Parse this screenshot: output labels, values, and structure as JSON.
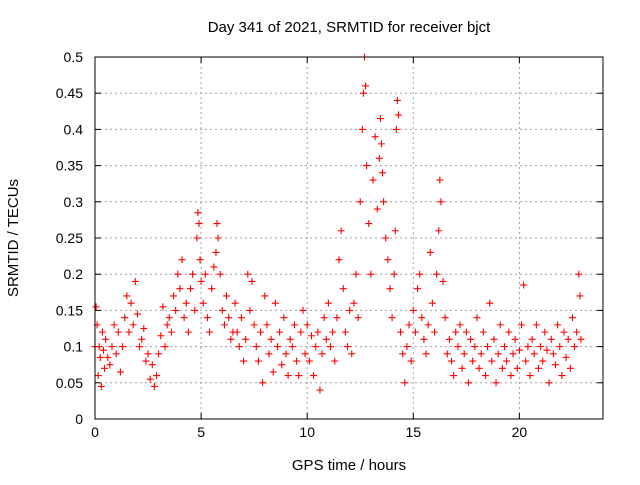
{
  "chart_data": {
    "type": "scatter",
    "title": "Day 341 of 2021, SRMTID for receiver bjct",
    "xlabel": "GPS time / hours",
    "ylabel": "SRMTID / TECUs",
    "xlim": [
      0,
      23.94
    ],
    "ylim": [
      0,
      0.5
    ],
    "xticks": [
      "0",
      "5",
      "10",
      "15",
      "20"
    ],
    "yticks": [
      "0",
      "0.05",
      "0.1",
      "0.15",
      "0.2",
      "0.25",
      "0.3",
      "0.35",
      "0.4",
      "0.45",
      "0.5"
    ],
    "grid": true,
    "marker": "plus",
    "series": [
      {
        "color": "#ff0000",
        "x": [
          0.0,
          0.05,
          0.1,
          0.15,
          0.2,
          0.25,
          0.3,
          0.35,
          0.4,
          0.45,
          0.5,
          0.6,
          0.7,
          0.8,
          0.9,
          1.0,
          1.1,
          1.2,
          1.3,
          1.4,
          1.5,
          1.6,
          1.7,
          1.8,
          1.9,
          2.0,
          2.1,
          2.2,
          2.3,
          2.4,
          2.5,
          2.6,
          2.7,
          2.8,
          2.9,
          3.0,
          3.1,
          3.2,
          3.3,
          3.4,
          3.5,
          3.6,
          3.7,
          3.8,
          3.9,
          4.0,
          4.1,
          4.2,
          4.3,
          4.4,
          4.5,
          4.6,
          4.7,
          4.8,
          4.85,
          4.9,
          4.95,
          5.0,
          5.1,
          5.2,
          5.3,
          5.4,
          5.5,
          5.6,
          5.7,
          5.75,
          5.8,
          5.9,
          6.0,
          6.1,
          6.2,
          6.3,
          6.4,
          6.5,
          6.6,
          6.7,
          6.8,
          6.9,
          7.0,
          7.1,
          7.2,
          7.3,
          7.4,
          7.5,
          7.6,
          7.7,
          7.8,
          7.9,
          8.0,
          8.1,
          8.2,
          8.3,
          8.4,
          8.5,
          8.6,
          8.7,
          8.8,
          8.9,
          9.0,
          9.1,
          9.2,
          9.3,
          9.4,
          9.5,
          9.6,
          9.7,
          9.8,
          9.9,
          10.0,
          10.1,
          10.2,
          10.3,
          10.4,
          10.5,
          10.6,
          10.7,
          10.8,
          10.9,
          11.0,
          11.1,
          11.2,
          11.3,
          11.4,
          11.5,
          11.6,
          11.7,
          11.8,
          11.9,
          12.0,
          12.1,
          12.2,
          12.3,
          12.4,
          12.5,
          12.6,
          12.65,
          12.7,
          12.75,
          12.8,
          12.9,
          13.0,
          13.1,
          13.2,
          13.3,
          13.4,
          13.45,
          13.5,
          13.55,
          13.6,
          13.7,
          13.8,
          13.9,
          14.0,
          14.1,
          14.15,
          14.2,
          14.25,
          14.3,
          14.4,
          14.5,
          14.6,
          14.7,
          14.8,
          14.9,
          15.0,
          15.1,
          15.2,
          15.3,
          15.4,
          15.5,
          15.6,
          15.7,
          15.8,
          15.9,
          16.0,
          16.1,
          16.2,
          16.25,
          16.3,
          16.4,
          16.5,
          16.6,
          16.7,
          16.8,
          16.9,
          17.0,
          17.1,
          17.2,
          17.3,
          17.4,
          17.5,
          17.6,
          17.7,
          17.8,
          17.9,
          18.0,
          18.1,
          18.2,
          18.3,
          18.4,
          18.5,
          18.6,
          18.7,
          18.8,
          18.9,
          19.0,
          19.1,
          19.2,
          19.3,
          19.4,
          19.5,
          19.6,
          19.7,
          19.8,
          19.9,
          20.0,
          20.1,
          20.2,
          20.3,
          20.4,
          20.5,
          20.6,
          20.7,
          20.8,
          20.9,
          21.0,
          21.1,
          21.2,
          21.3,
          21.4,
          21.5,
          21.6,
          21.7,
          21.8,
          21.9,
          22.0,
          22.1,
          22.2,
          22.3,
          22.4,
          22.5,
          22.6,
          22.7,
          22.8,
          22.85,
          22.9
        ],
        "y": [
          0.1,
          0.155,
          0.13,
          0.06,
          0.1,
          0.085,
          0.045,
          0.12,
          0.095,
          0.07,
          0.11,
          0.085,
          0.075,
          0.1,
          0.13,
          0.09,
          0.12,
          0.065,
          0.1,
          0.14,
          0.17,
          0.12,
          0.16,
          0.13,
          0.19,
          0.145,
          0.1,
          0.11,
          0.125,
          0.08,
          0.09,
          0.055,
          0.075,
          0.045,
          0.06,
          0.09,
          0.115,
          0.155,
          0.1,
          0.13,
          0.14,
          0.12,
          0.17,
          0.15,
          0.2,
          0.18,
          0.22,
          0.14,
          0.16,
          0.12,
          0.18,
          0.2,
          0.15,
          0.25,
          0.285,
          0.27,
          0.22,
          0.19,
          0.16,
          0.2,
          0.14,
          0.12,
          0.18,
          0.21,
          0.23,
          0.27,
          0.25,
          0.2,
          0.15,
          0.13,
          0.17,
          0.14,
          0.11,
          0.12,
          0.16,
          0.12,
          0.1,
          0.14,
          0.08,
          0.11,
          0.2,
          0.15,
          0.19,
          0.13,
          0.1,
          0.08,
          0.12,
          0.05,
          0.17,
          0.13,
          0.09,
          0.11,
          0.065,
          0.16,
          0.1,
          0.12,
          0.075,
          0.14,
          0.09,
          0.06,
          0.11,
          0.1,
          0.13,
          0.08,
          0.06,
          0.12,
          0.15,
          0.09,
          0.13,
          0.08,
          0.115,
          0.06,
          0.1,
          0.12,
          0.04,
          0.09,
          0.14,
          0.11,
          0.16,
          0.1,
          0.12,
          0.08,
          0.14,
          0.22,
          0.26,
          0.18,
          0.12,
          0.1,
          0.15,
          0.09,
          0.16,
          0.2,
          0.14,
          0.3,
          0.4,
          0.45,
          0.5,
          0.46,
          0.35,
          0.27,
          0.2,
          0.33,
          0.39,
          0.29,
          0.36,
          0.415,
          0.38,
          0.34,
          0.3,
          0.25,
          0.22,
          0.18,
          0.14,
          0.2,
          0.26,
          0.4,
          0.44,
          0.42,
          0.12,
          0.09,
          0.05,
          0.1,
          0.13,
          0.08,
          0.15,
          0.12,
          0.18,
          0.2,
          0.14,
          0.11,
          0.09,
          0.13,
          0.23,
          0.16,
          0.12,
          0.2,
          0.26,
          0.33,
          0.3,
          0.19,
          0.14,
          0.09,
          0.11,
          0.08,
          0.06,
          0.12,
          0.1,
          0.13,
          0.07,
          0.09,
          0.12,
          0.05,
          0.11,
          0.08,
          0.1,
          0.14,
          0.07,
          0.09,
          0.12,
          0.06,
          0.1,
          0.16,
          0.08,
          0.11,
          0.05,
          0.09,
          0.13,
          0.07,
          0.1,
          0.08,
          0.12,
          0.06,
          0.09,
          0.11,
          0.07,
          0.095,
          0.13,
          0.185,
          0.08,
          0.1,
          0.06,
          0.11,
          0.09,
          0.13,
          0.07,
          0.1,
          0.08,
          0.12,
          0.095,
          0.05,
          0.11,
          0.09,
          0.075,
          0.13,
          0.1,
          0.06,
          0.12,
          0.085,
          0.11,
          0.07,
          0.14,
          0.1,
          0.12,
          0.2,
          0.17,
          0.11
        ]
      }
    ]
  }
}
